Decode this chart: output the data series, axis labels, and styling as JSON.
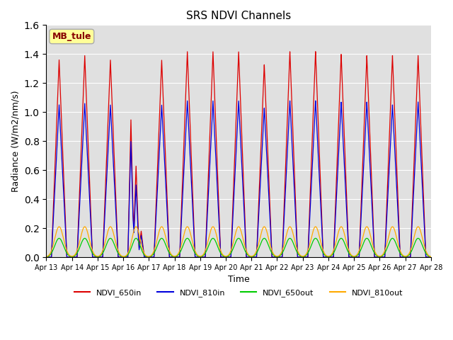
{
  "title": "SRS NDVI Channels",
  "xlabel": "Time",
  "ylabel": "Radiance (W/m2/nm/s)",
  "ylim": [
    0.0,
    1.6
  ],
  "yticks": [
    0.0,
    0.2,
    0.4,
    0.6,
    0.8,
    1.0,
    1.2,
    1.4,
    1.6
  ],
  "colors": {
    "NDVI_650in": "#dd0000",
    "NDVI_810in": "#0000dd",
    "NDVI_650out": "#00cc00",
    "NDVI_810out": "#ffaa00"
  },
  "legend_label": "MB_tule",
  "background_color": "#e0e0e0",
  "n_days": 15,
  "start_day": 13,
  "peaks_650in": [
    1.36,
    1.39,
    1.36,
    0.95,
    1.36,
    1.42,
    1.42,
    1.42,
    1.33,
    1.42,
    1.42,
    1.4,
    1.39,
    1.39,
    1.39
  ],
  "peaks_810in": [
    1.05,
    1.06,
    1.05,
    0.8,
    1.05,
    1.08,
    1.08,
    1.08,
    1.03,
    1.08,
    1.08,
    1.07,
    1.07,
    1.05,
    1.07
  ],
  "peaks_650out": [
    0.13,
    0.13,
    0.13,
    0.13,
    0.13,
    0.13,
    0.13,
    0.13,
    0.13,
    0.13,
    0.13,
    0.13,
    0.13,
    0.13,
    0.13
  ],
  "peaks_810out": [
    0.21,
    0.21,
    0.21,
    0.21,
    0.21,
    0.21,
    0.21,
    0.21,
    0.21,
    0.21,
    0.21,
    0.21,
    0.21,
    0.21,
    0.21
  ],
  "special_day_idx": 3,
  "special_peaks_650in": [
    0.95,
    0.63,
    0.18
  ],
  "special_peaks_810in": [
    0.8,
    0.5,
    0.15
  ],
  "special_offsets": [
    0.3,
    0.5,
    0.7
  ]
}
